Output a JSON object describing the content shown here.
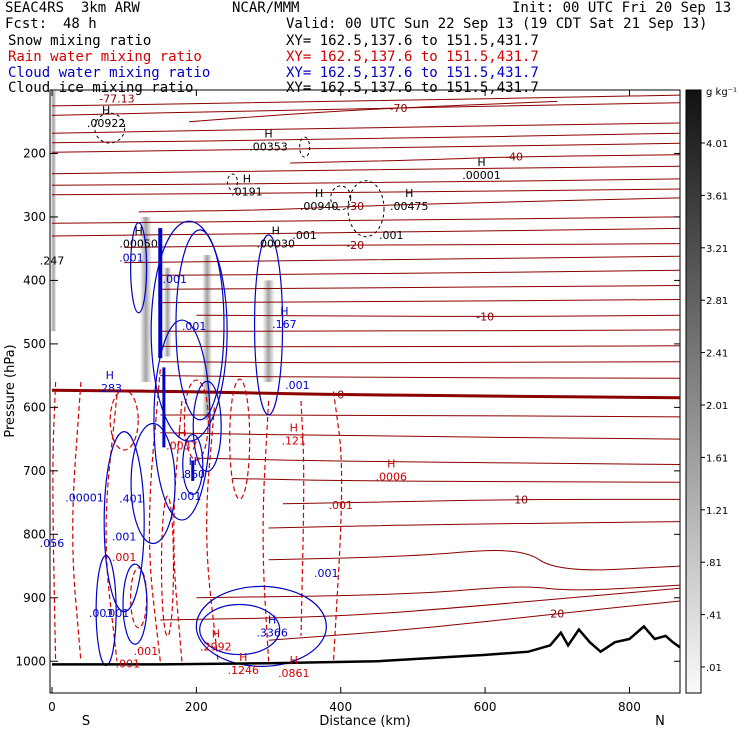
{
  "header": {
    "experiment": "SEAC4RS  3km ARW",
    "fcst_label": "Fcst:",
    "fcst_value": "48 h",
    "center": "NCAR/MMM",
    "init": "Init: 00 UTC Fri 20 Sep 13",
    "valid": "Valid: 00 UTC Sun 22 Sep 13 (19 CDT Sat 21 Sep 13)",
    "fields": [
      {
        "label": "Snow mixing ratio",
        "xy": "XY= 162.5,137.6 to 151.5,431.7",
        "color": "#000000"
      },
      {
        "label": "Rain water mixing ratio",
        "xy": "XY= 162.5,137.6 to 151.5,431.7",
        "color": "#d40000"
      },
      {
        "label": "Cloud water mixing ratio",
        "xy": "XY= 162.5,137.6 to 151.5,431.7",
        "color": "#0000c8"
      },
      {
        "label": "Cloud ice mixing ratio",
        "xy": "XY= 162.5,137.6 to 151.5,431.7",
        "color": "#000000"
      }
    ]
  },
  "chart_data": {
    "type": "contour",
    "xlabel": "Distance (km)",
    "ylabel": "Pressure (hPa)",
    "xlim": [
      0,
      870
    ],
    "ylim": [
      1050,
      100
    ],
    "x_ticks": [
      0,
      200,
      400,
      600,
      800
    ],
    "y_ticks": [
      200,
      300,
      400,
      500,
      600,
      700,
      800,
      900,
      1000
    ],
    "left_end_label": "S",
    "right_end_label": "N",
    "colorbar": {
      "unit": "g kg⁻¹",
      "ticks": [
        "4.01",
        "3.61",
        "3.21",
        "2.81",
        "2.41",
        "2.01",
        "1.61",
        "1.21",
        ".81",
        ".41",
        ".01"
      ]
    },
    "temperature_isotherms": [
      {
        "label": "-70",
        "points": [
          [
            190,
            150
          ],
          [
            330,
            138
          ],
          [
            480,
            128
          ],
          [
            700,
            118
          ]
        ]
      },
      {
        "label": "-40",
        "points": [
          [
            330,
            215
          ],
          [
            520,
            210
          ],
          [
            640,
            205
          ],
          [
            870,
            202
          ]
        ]
      },
      {
        "label": "-30",
        "points": [
          [
            120,
            292
          ],
          [
            300,
            289
          ],
          [
            420,
            283
          ],
          [
            600,
            277
          ],
          [
            870,
            270
          ]
        ]
      },
      {
        "label": "-20",
        "points": [
          [
            100,
            348
          ],
          [
            250,
            346
          ],
          [
            420,
            344
          ],
          [
            600,
            344
          ],
          [
            870,
            342
          ]
        ]
      },
      {
        "label": "-10",
        "points": [
          [
            200,
            455
          ],
          [
            400,
            456
          ],
          [
            600,
            457
          ],
          [
            870,
            455
          ]
        ]
      },
      {
        "label": "0",
        "points": [
          [
            0,
            573
          ],
          [
            180,
            575
          ],
          [
            400,
            580
          ],
          [
            600,
            582
          ],
          [
            870,
            585
          ]
        ]
      },
      {
        "label": "10",
        "points": [
          [
            320,
            752
          ],
          [
            500,
            748
          ],
          [
            650,
            745
          ],
          [
            870,
            745
          ]
        ]
      },
      {
        "label": "20",
        "points": [
          [
            300,
            967
          ],
          [
            500,
            950
          ],
          [
            700,
            925
          ],
          [
            870,
            905
          ]
        ]
      }
    ],
    "max_labels": [
      {
        "text": ".00922",
        "x": 75,
        "p": 155,
        "field": "snow"
      },
      {
        "text": ".00353",
        "x": 300,
        "p": 192,
        "field": "snow"
      },
      {
        "text": ".00001",
        "x": 595,
        "p": 237,
        "field": "snow"
      },
      {
        "text": ".0191",
        "x": 270,
        "p": 263,
        "field": "snow"
      },
      {
        "text": ".00940",
        "x": 370,
        "p": 286,
        "field": "snow"
      },
      {
        "text": ".00475",
        "x": 495,
        "p": 286,
        "field": "snow"
      },
      {
        "text": ".00050",
        "x": 120,
        "p": 345,
        "field": "snow"
      },
      {
        "text": ".00030",
        "x": 310,
        "p": 345,
        "field": "snow"
      },
      {
        "text": ".167",
        "x": 322,
        "p": 472,
        "field": "cloud"
      },
      {
        "text": ".283",
        "x": 80,
        "p": 573,
        "field": "cloud"
      },
      {
        "text": ".0037",
        "x": 180,
        "p": 663,
        "field": "rain"
      },
      {
        "text": ".121",
        "x": 335,
        "p": 655,
        "field": "rain"
      },
      {
        "text": ".0006",
        "x": 470,
        "p": 712,
        "field": "rain"
      },
      {
        "text": ".860",
        "x": 195,
        "p": 708,
        "field": "cloud"
      },
      {
        "text": ".3366",
        "x": 305,
        "p": 958,
        "field": "cloud"
      },
      {
        "text": ".2992",
        "x": 227,
        "p": 980,
        "field": "rain"
      },
      {
        "text": ".1246",
        "x": 265,
        "p": 1017,
        "field": "rain"
      },
      {
        "text": ".0861",
        "x": 335,
        "p": 1022,
        "field": "rain"
      }
    ],
    "min_contour_labels": [
      {
        "text": ".001",
        "x": 110,
        "p": 370,
        "field": "cloud"
      },
      {
        "text": ".001",
        "x": 197,
        "p": 478,
        "field": "cloud"
      },
      {
        "text": ".001",
        "x": 340,
        "p": 571,
        "field": "cloud"
      },
      {
        "text": ".001",
        "x": 470,
        "p": 335,
        "field": "snow"
      },
      {
        "text": ".00001",
        "x": 45,
        "p": 748,
        "field": "cloud"
      },
      {
        "text": ".001",
        "x": 400,
        "p": 760,
        "field": "rain"
      },
      {
        "text": ".001",
        "x": 380,
        "p": 867,
        "field": "cloud"
      },
      {
        "text": ".001",
        "x": 90,
        "p": 930,
        "field": "cloud"
      },
      {
        "text": ".001",
        "x": 130,
        "p": 990,
        "field": "rain"
      },
      {
        "text": ".001",
        "x": 100,
        "p": 842,
        "field": "rain"
      },
      {
        "text": ".001",
        "x": 100,
        "p": 810,
        "field": "cloud"
      },
      {
        "text": ".401",
        "x": 110,
        "p": 750,
        "field": "cloud"
      },
      {
        "text": ".001",
        "x": 190,
        "p": 746,
        "field": "cloud"
      },
      {
        "text": ".001",
        "x": 68,
        "p": 930,
        "field": "cloud"
      },
      {
        "text": ".056",
        "x": 0,
        "p": 820,
        "field": "cloud"
      },
      {
        "text": ".247",
        "x": 0,
        "p": 375,
        "field": "snow"
      },
      {
        "text": "-77.13",
        "x": 90,
        "p": 120,
        "field": "temperature"
      },
      {
        "text": ".001",
        "x": 170,
        "p": 404,
        "field": "cloud"
      },
      {
        "text": ".001",
        "x": 350,
        "p": 335,
        "field": "snow"
      },
      {
        "text": ".001",
        "x": 105,
        "p": 1010,
        "field": "rain"
      }
    ],
    "colors": {
      "isotherm": "#8b0000",
      "freezing_level": "#8b0000",
      "rain": "#d40000",
      "cloud_water": "#0000c8",
      "snow": "#000000",
      "terrain": "#000000"
    }
  }
}
